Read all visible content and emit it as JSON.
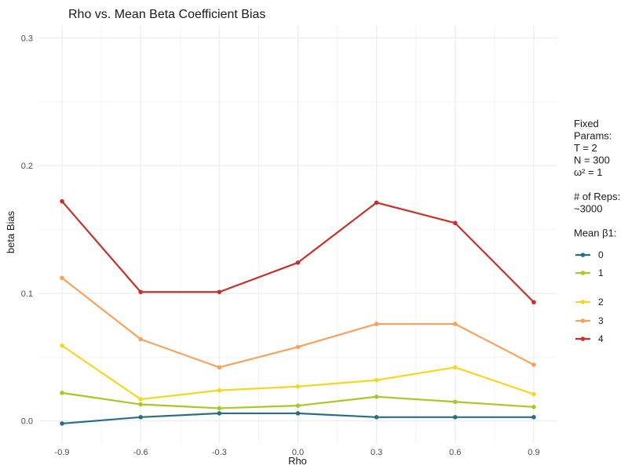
{
  "chart_data": {
    "type": "line",
    "title": "Rho vs. Mean Beta Coefficient Bias",
    "xlabel": "Rho",
    "ylabel": "beta Bias",
    "x": [
      -0.9,
      -0.6,
      -0.3,
      0.0,
      0.3,
      0.6,
      0.9
    ],
    "x_tick_labels": [
      "-0.9",
      "-0.6",
      "-0.3",
      "0.0",
      "0.3",
      "0.6",
      "0.9"
    ],
    "xlim": [
      -0.99,
      0.99
    ],
    "ylim": [
      -0.018,
      0.31
    ],
    "y_ticks": [
      0.0,
      0.1,
      0.2,
      0.3
    ],
    "y_tick_labels": [
      "0.0",
      "0.1",
      "0.2",
      "0.3"
    ],
    "grid": true,
    "legend_placement": "right",
    "legend_notes": [
      "Fixed",
      "Params:",
      "T = 2",
      "N = 300",
      "ω² = 1",
      "",
      "# of Reps:",
      "~3000",
      "",
      "Mean β1:"
    ],
    "series": [
      {
        "name": "0",
        "color": "#2a6f80",
        "values": [
          -0.002,
          0.003,
          0.006,
          0.006,
          0.003,
          0.003,
          0.003
        ]
      },
      {
        "name": "1",
        "color": "#a8c82a",
        "values": [
          0.022,
          0.013,
          0.01,
          0.012,
          0.019,
          0.015,
          0.011
        ]
      },
      {
        "name": "2",
        "color": "#f5d624",
        "values": [
          0.059,
          0.017,
          0.024,
          0.027,
          0.032,
          0.042,
          0.021
        ]
      },
      {
        "name": "3",
        "color": "#f4a460",
        "values": [
          0.112,
          0.064,
          0.042,
          0.058,
          0.076,
          0.076,
          0.044
        ]
      },
      {
        "name": "4",
        "color": "#c8312a",
        "values": [
          0.172,
          0.101,
          0.101,
          0.124,
          0.171,
          0.155,
          0.093
        ]
      }
    ]
  }
}
